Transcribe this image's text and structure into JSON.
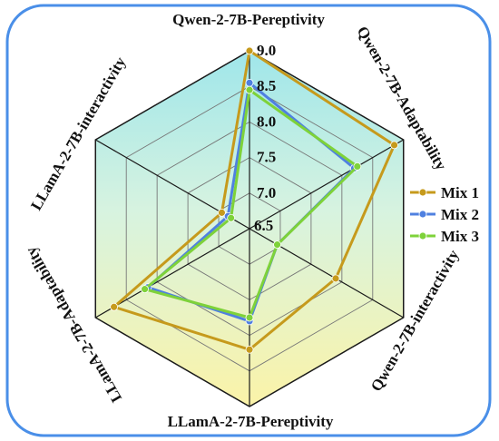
{
  "chart_data": {
    "type": "radar",
    "title": "",
    "axes": [
      "Qwen-2-7B-Pereptivity",
      "Qwen-2-7B-Adaptability",
      "Qwen-2-7B-interactivity",
      "LLamA-2-7B-Pereptivity",
      "LLamA-2-7B-Adaptability",
      "LLamA-2-7B-interactivity"
    ],
    "range": [
      6.5,
      9.0
    ],
    "ticks": [
      "6.5",
      "7.0",
      "7.5",
      "8.0",
      "8.5",
      "9.0"
    ],
    "grid": true,
    "legend_position": "right",
    "series": [
      {
        "name": "Mix 1",
        "color": "#c69a1c",
        "values": [
          9.0,
          8.85,
          7.9,
          8.2,
          8.7,
          6.95
        ]
      },
      {
        "name": "Mix 2",
        "color": "#4f80e0",
        "values": [
          8.55,
          8.2,
          6.95,
          7.8,
          8.15,
          6.85
        ]
      },
      {
        "name": "Mix 3",
        "color": "#7ed23a",
        "values": [
          8.45,
          8.25,
          6.95,
          7.75,
          8.2,
          6.8
        ]
      }
    ]
  }
}
